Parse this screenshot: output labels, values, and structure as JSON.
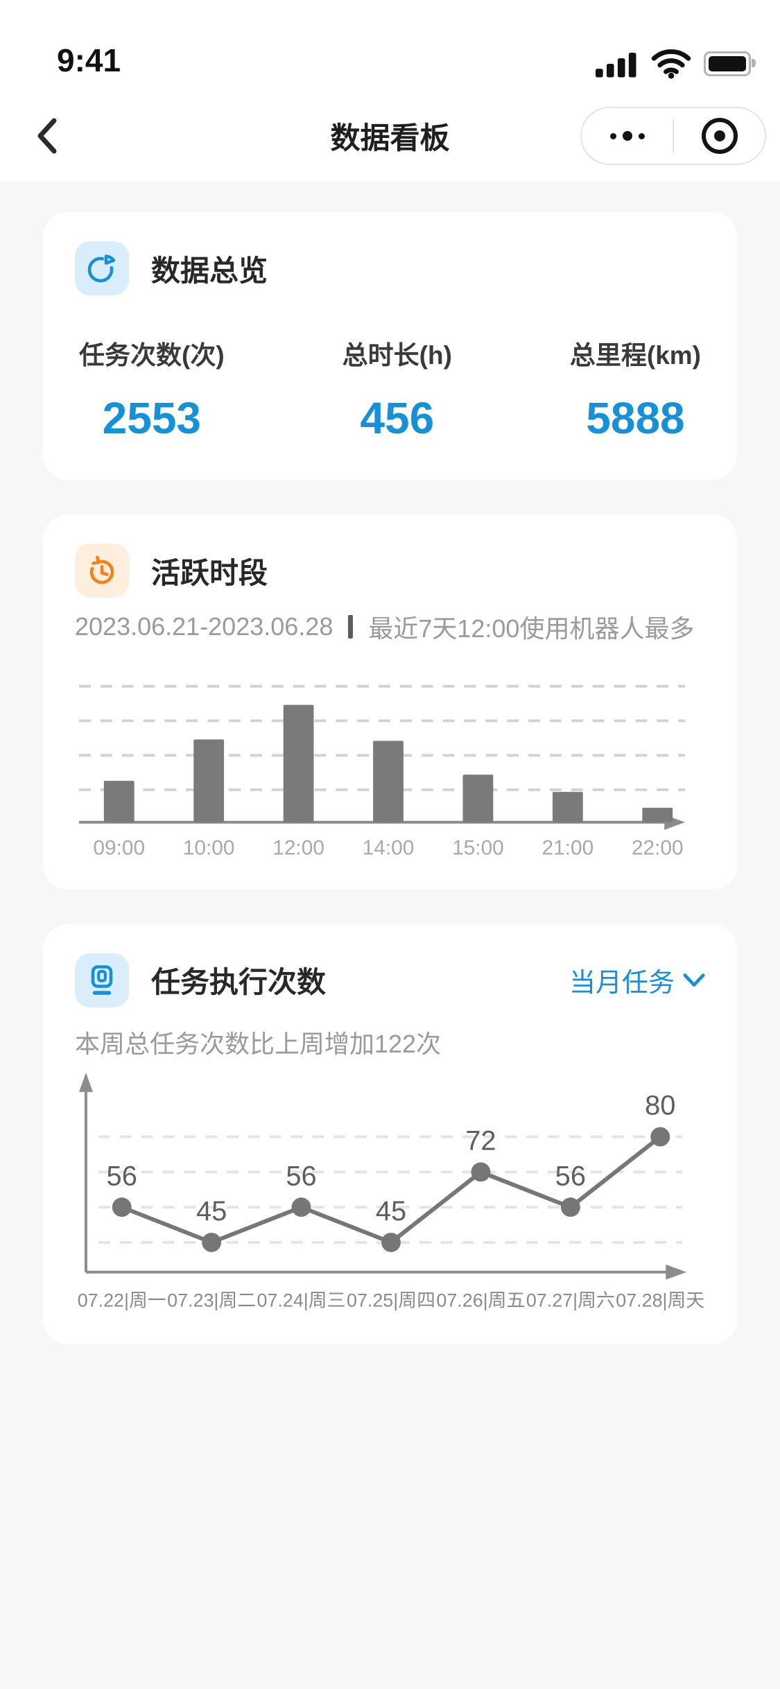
{
  "status_bar": {
    "time": "9:41"
  },
  "nav": {
    "title": "数据看板",
    "back_icon": "chevron-left-icon",
    "more_icon": "more-dots-icon",
    "home_icon": "record-dot-icon"
  },
  "overview": {
    "title": "数据总览",
    "icon": "pie-chart-icon",
    "stats": [
      {
        "label": "任务次数(次)",
        "value": "2553"
      },
      {
        "label": "总时长(h)",
        "value": "456"
      },
      {
        "label": "总里程(km)",
        "value": "5888"
      }
    ]
  },
  "active_hours": {
    "title": "活跃时段",
    "icon": "history-clock-icon",
    "date_range": "2023.06.21-2023.06.28",
    "note": "最近7天12:00使用机器人最多"
  },
  "task_runs": {
    "title": "任务执行次数",
    "icon": "robot-dock-icon",
    "filter_label": "当月任务",
    "filter_icon": "chevron-down-icon",
    "summary": "本周总任务次数比上周增加122次"
  },
  "chart_data": [
    {
      "id": "active-hours-bar",
      "type": "bar",
      "title": "活跃时段",
      "categories": [
        "09:00",
        "10:00",
        "12:00",
        "14:00",
        "15:00",
        "21:00",
        "22:00"
      ],
      "values": [
        60,
        120,
        170,
        118,
        69,
        44,
        21
      ],
      "values_note": "relative bar heights in px; chart shows no y-axis tick labels",
      "xlabel": "",
      "ylabel": "",
      "grid": "4 dashed horizontal lines",
      "legend": "none",
      "bar_color": "#7a7a7a",
      "axis_color": "#8c8c8c",
      "grid_color": "#d2d2d2",
      "label_color": "#a8a8a8"
    },
    {
      "id": "task-runs-line",
      "type": "line",
      "title": "任务执行次数",
      "categories": [
        "07.22|周一",
        "07.23|周二",
        "07.24|周三",
        "07.25|周四",
        "07.26|周五",
        "07.27|周六",
        "07.28|周天"
      ],
      "values": [
        56,
        45,
        56,
        45,
        72,
        56,
        80
      ],
      "point_labels": [
        "56",
        "45",
        "56",
        "45",
        "72",
        "56",
        "80"
      ],
      "xlabel": "",
      "ylabel": "",
      "grid": "4 dashed horizontal lines, one per distinct value",
      "legend": "none",
      "line_color": "#767676",
      "axis_color": "#8c8c8c",
      "grid_color": "#e4e4e4",
      "label_color": "#8a8a8a",
      "value_label_color": "#5e5e5e"
    }
  ],
  "colors": {
    "accent_blue": "#1890d6",
    "icon_orange": "#f0831c",
    "page_bg": "#f7f7f8"
  }
}
